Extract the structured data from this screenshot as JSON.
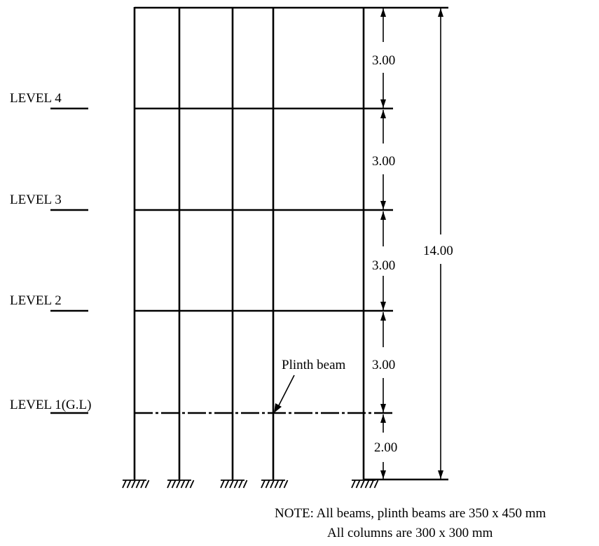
{
  "levels": [
    {
      "label": "LEVEL 4"
    },
    {
      "label": "LEVEL 3"
    },
    {
      "label": "LEVEL 2"
    },
    {
      "label": "LEVEL 1",
      "suffix": "(G.L)"
    }
  ],
  "dimensions": {
    "storey_heights": [
      "3.00",
      "3.00",
      "3.00",
      "3.00",
      "2.00"
    ],
    "total_height": "14.00"
  },
  "plinth_label": "Plinth beam",
  "note": {
    "line1": "NOTE: All beams, plinth beams are 350 x 450 mm",
    "line2": "All columns are 300 x 300 mm"
  },
  "colors": {
    "stroke": "#000000",
    "background": "#ffffff"
  }
}
